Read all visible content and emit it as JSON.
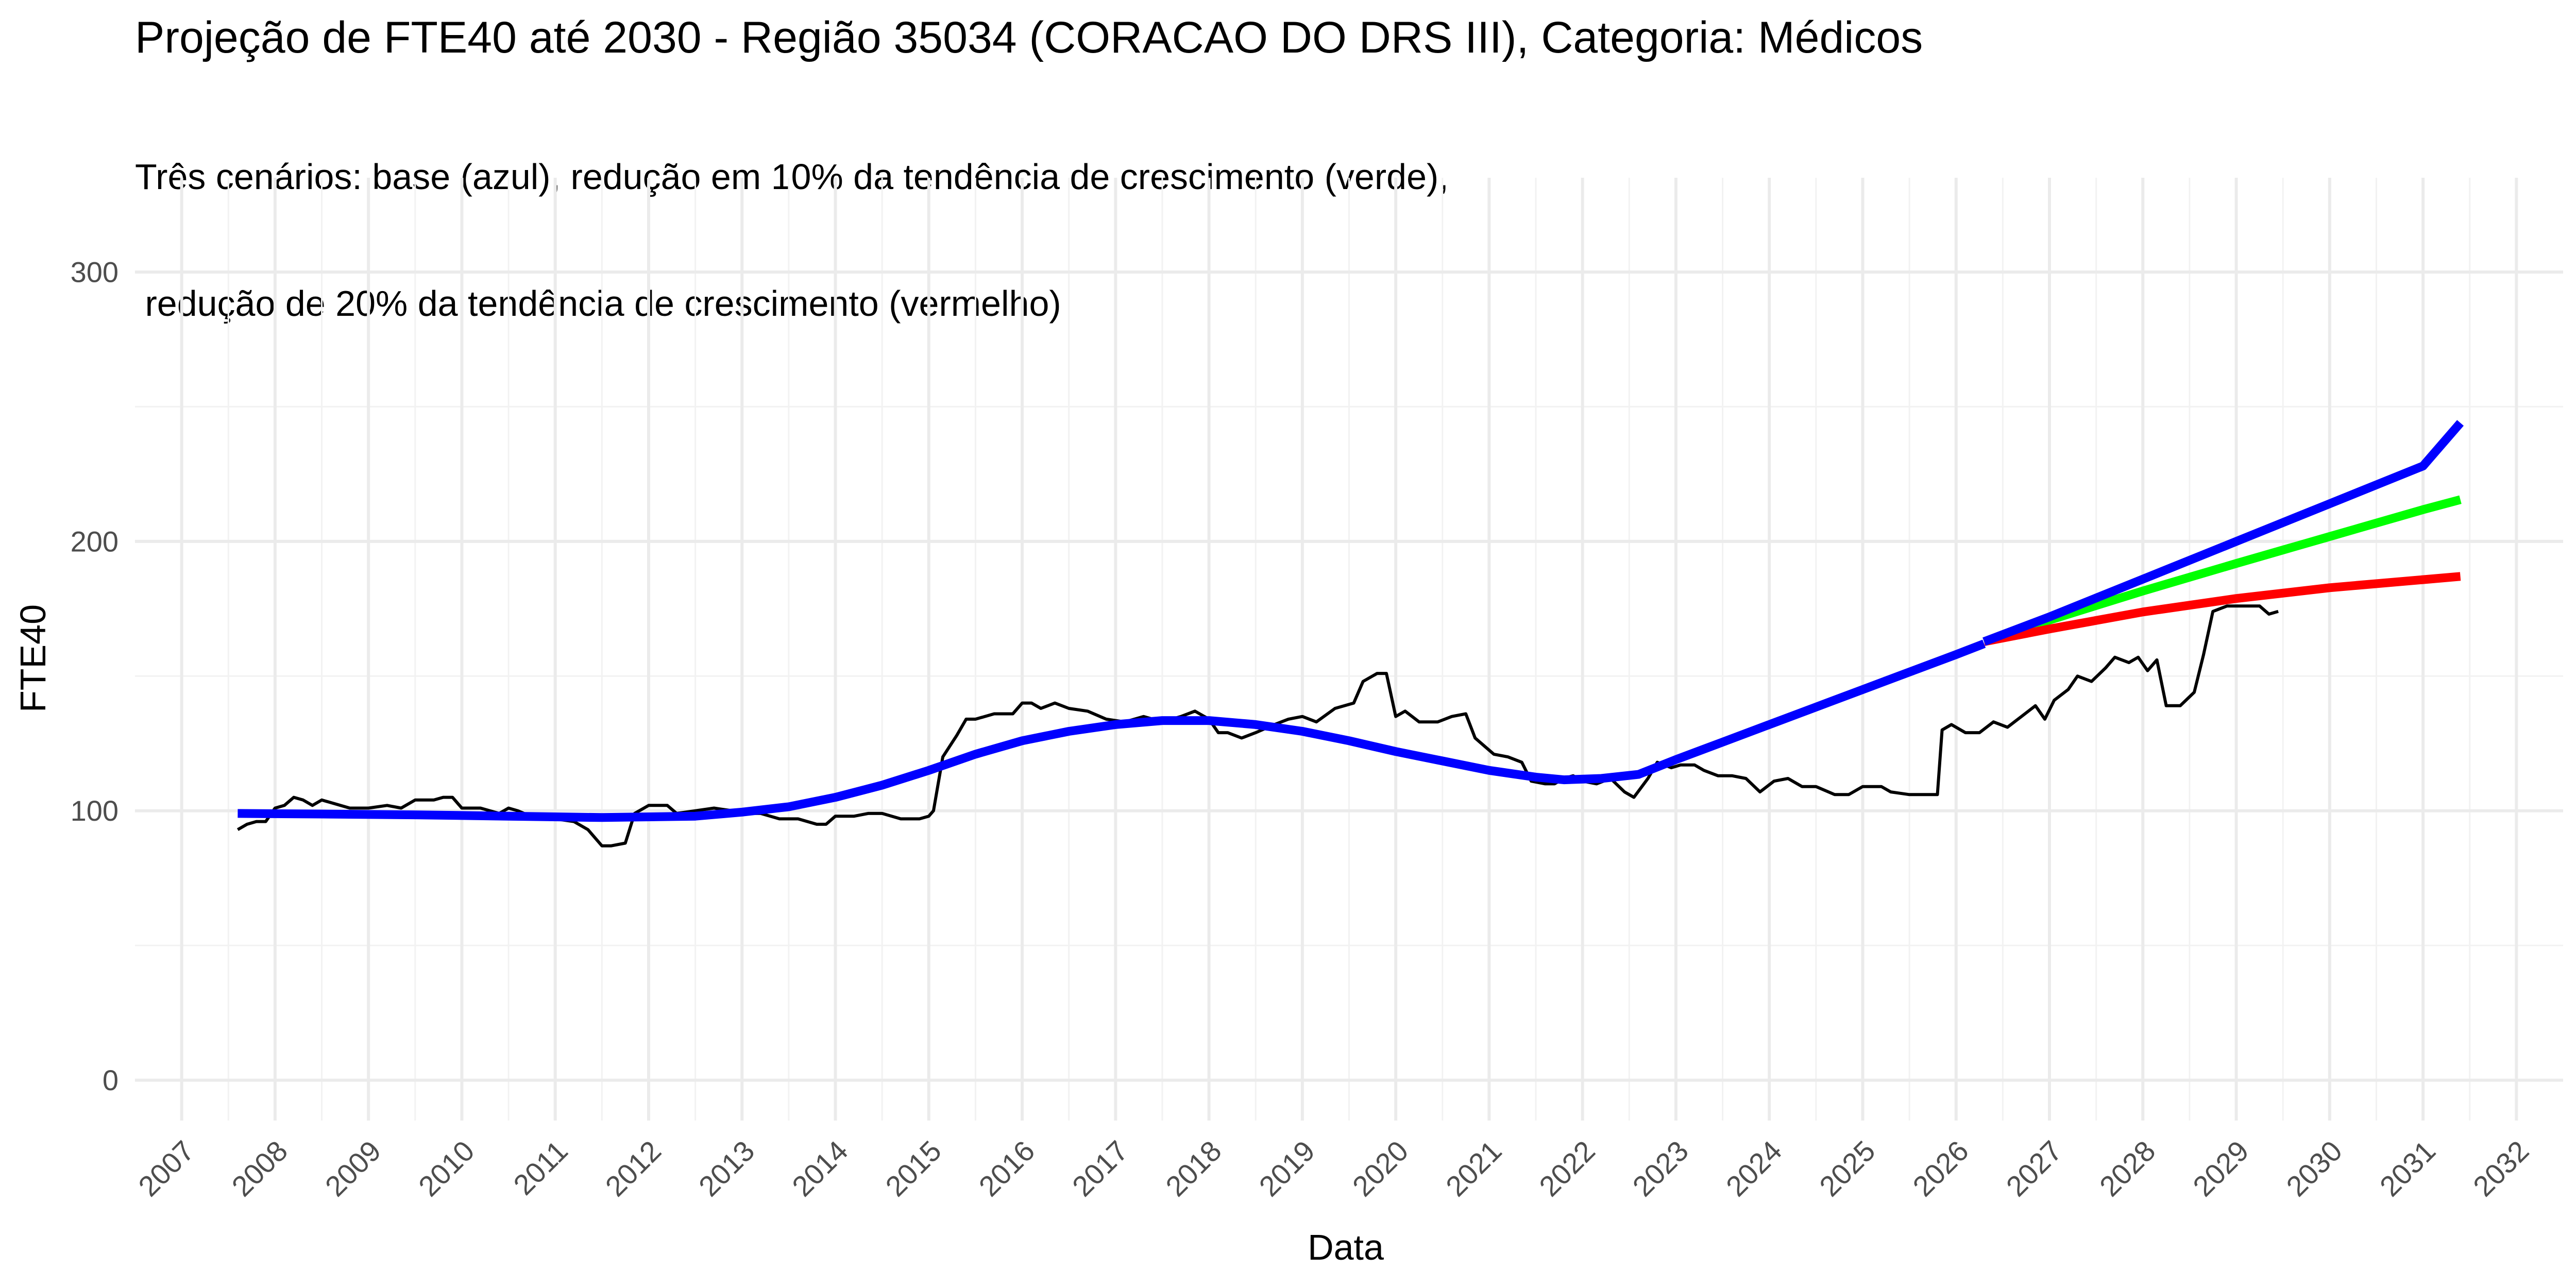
{
  "chart_data": {
    "type": "line",
    "title": "Projeção de FTE40 até 2030 - Região 35034 (CORACAO DO DRS III), Categoria: Médicos",
    "subtitle_lines": [
      "Três cenários: base (azul), redução em 10% da tendência de crescimento (verde),",
      " redução de 20% da tendência de crescimento (vermelho)"
    ],
    "xlabel": "Data",
    "ylabel": "FTE40",
    "xlim": [
      2006.5,
      2032.5
    ],
    "ylim": [
      -15,
      335
    ],
    "x_ticks": [
      2007,
      2008,
      2009,
      2010,
      2011,
      2012,
      2013,
      2014,
      2015,
      2016,
      2017,
      2018,
      2019,
      2020,
      2021,
      2022,
      2023,
      2024,
      2025,
      2026,
      2027,
      2028,
      2029,
      2030,
      2031,
      2032
    ],
    "x_tick_labels": [
      "2007",
      "2008",
      "2009",
      "2010",
      "2011",
      "2012",
      "2013",
      "2014",
      "2015",
      "2016",
      "2017",
      "2018",
      "2019",
      "2020",
      "2021",
      "2022",
      "2023",
      "2024",
      "2025",
      "2026",
      "2027",
      "2028",
      "2029",
      "2030",
      "2031",
      "2032"
    ],
    "y_ticks": [
      0,
      100,
      200,
      300
    ],
    "y_tick_labels": [
      "0",
      "100",
      "200",
      "300"
    ],
    "grid": true,
    "legend": "none",
    "series": [
      {
        "color": "#000000",
        "style": "thin",
        "points": [
          [
            2007.6,
            93
          ],
          [
            2007.7,
            95
          ],
          [
            2007.8,
            96
          ],
          [
            2007.9,
            96
          ],
          [
            2008.0,
            101
          ],
          [
            2008.1,
            102
          ],
          [
            2008.2,
            105
          ],
          [
            2008.3,
            104
          ],
          [
            2008.4,
            102
          ],
          [
            2008.5,
            104
          ],
          [
            2008.6,
            103
          ],
          [
            2008.8,
            101
          ],
          [
            2009.0,
            101
          ],
          [
            2009.2,
            102
          ],
          [
            2009.35,
            101
          ],
          [
            2009.5,
            104
          ],
          [
            2009.7,
            104
          ],
          [
            2009.8,
            105
          ],
          [
            2009.9,
            105
          ],
          [
            2010.0,
            101
          ],
          [
            2010.2,
            101
          ],
          [
            2010.4,
            99
          ],
          [
            2010.5,
            101
          ],
          [
            2010.6,
            100
          ],
          [
            2010.8,
            97
          ],
          [
            2011.0,
            97
          ],
          [
            2011.2,
            96
          ],
          [
            2011.35,
            93
          ],
          [
            2011.5,
            87
          ],
          [
            2011.6,
            87
          ],
          [
            2011.75,
            88
          ],
          [
            2011.85,
            99
          ],
          [
            2012.0,
            102
          ],
          [
            2012.2,
            102
          ],
          [
            2012.3,
            99
          ],
          [
            2012.5,
            100
          ],
          [
            2012.7,
            101
          ],
          [
            2012.9,
            100
          ],
          [
            2013.0,
            99
          ],
          [
            2013.2,
            99
          ],
          [
            2013.4,
            97
          ],
          [
            2013.6,
            97
          ],
          [
            2013.8,
            95
          ],
          [
            2013.9,
            95
          ],
          [
            2014.0,
            98
          ],
          [
            2014.2,
            98
          ],
          [
            2014.35,
            99
          ],
          [
            2014.5,
            99
          ],
          [
            2014.7,
            97
          ],
          [
            2014.9,
            97
          ],
          [
            2015.0,
            98
          ],
          [
            2015.05,
            100
          ],
          [
            2015.15,
            120
          ],
          [
            2015.3,
            128
          ],
          [
            2015.4,
            134
          ],
          [
            2015.5,
            134
          ],
          [
            2015.7,
            136
          ],
          [
            2015.9,
            136
          ],
          [
            2016.0,
            140
          ],
          [
            2016.1,
            140
          ],
          [
            2016.2,
            138
          ],
          [
            2016.35,
            140
          ],
          [
            2016.5,
            138
          ],
          [
            2016.7,
            137
          ],
          [
            2016.9,
            134
          ],
          [
            2017.1,
            133
          ],
          [
            2017.3,
            135
          ],
          [
            2017.5,
            133
          ],
          [
            2017.7,
            135
          ],
          [
            2017.85,
            137
          ],
          [
            2018.0,
            134
          ],
          [
            2018.1,
            129
          ],
          [
            2018.2,
            129
          ],
          [
            2018.35,
            127
          ],
          [
            2018.5,
            129
          ],
          [
            2018.7,
            132
          ],
          [
            2018.85,
            134
          ],
          [
            2019.0,
            135
          ],
          [
            2019.15,
            133
          ],
          [
            2019.35,
            138
          ],
          [
            2019.55,
            140
          ],
          [
            2019.65,
            148
          ],
          [
            2019.8,
            151
          ],
          [
            2019.9,
            151
          ],
          [
            2020.0,
            135
          ],
          [
            2020.1,
            137
          ],
          [
            2020.25,
            133
          ],
          [
            2020.45,
            133
          ],
          [
            2020.6,
            135
          ],
          [
            2020.75,
            136
          ],
          [
            2020.85,
            127
          ],
          [
            2020.95,
            124
          ],
          [
            2021.05,
            121
          ],
          [
            2021.2,
            120
          ],
          [
            2021.35,
            118
          ],
          [
            2021.45,
            111
          ],
          [
            2021.6,
            110
          ],
          [
            2021.7,
            110
          ],
          [
            2021.8,
            112
          ],
          [
            2021.9,
            113
          ],
          [
            2022.0,
            111
          ],
          [
            2022.15,
            110
          ],
          [
            2022.3,
            112
          ],
          [
            2022.45,
            107
          ],
          [
            2022.55,
            105
          ],
          [
            2022.7,
            112
          ],
          [
            2022.8,
            118
          ],
          [
            2022.95,
            116
          ],
          [
            2023.05,
            117
          ],
          [
            2023.2,
            117
          ],
          [
            2023.3,
            115
          ],
          [
            2023.45,
            113
          ],
          [
            2023.6,
            113
          ],
          [
            2023.75,
            112
          ],
          [
            2023.9,
            107
          ],
          [
            2024.05,
            111
          ],
          [
            2024.2,
            112
          ],
          [
            2024.35,
            109
          ],
          [
            2024.5,
            109
          ],
          [
            2024.7,
            106
          ],
          [
            2024.85,
            106
          ],
          [
            2025.0,
            109
          ],
          [
            2025.2,
            109
          ],
          [
            2025.3,
            107
          ],
          [
            2025.5,
            106
          ],
          [
            2025.7,
            106
          ],
          [
            2025.8,
            106
          ],
          [
            2025.85,
            130
          ],
          [
            2025.95,
            132
          ],
          [
            2026.1,
            129
          ],
          [
            2026.25,
            129
          ],
          [
            2026.4,
            133
          ],
          [
            2026.55,
            131
          ],
          [
            2026.7,
            135
          ],
          [
            2026.85,
            139
          ],
          [
            2026.95,
            134
          ],
          [
            2027.05,
            141
          ],
          [
            2027.2,
            145
          ],
          [
            2027.3,
            150
          ],
          [
            2027.45,
            148
          ],
          [
            2027.6,
            153
          ],
          [
            2027.7,
            157
          ],
          [
            2027.85,
            155
          ],
          [
            2027.95,
            157
          ],
          [
            2028.05,
            152
          ],
          [
            2028.15,
            156
          ],
          [
            2028.25,
            139
          ],
          [
            2028.4,
            139
          ],
          [
            2028.55,
            144
          ],
          [
            2028.65,
            158
          ],
          [
            2028.75,
            174
          ],
          [
            2028.9,
            176
          ],
          [
            2029.1,
            176
          ],
          [
            2029.25,
            176
          ],
          [
            2029.35,
            173
          ],
          [
            2029.45,
            174
          ]
        ]
      },
      {
        "color": "#0000FF",
        "style": "thick",
        "points": [
          [
            2007.6,
            99
          ],
          [
            2008.5,
            98.8
          ],
          [
            2009.5,
            98.5
          ],
          [
            2010.5,
            98
          ],
          [
            2011.5,
            97.5
          ],
          [
            2012.5,
            98
          ],
          [
            2013.0,
            99.5
          ],
          [
            2013.5,
            101.5
          ],
          [
            2014.0,
            105
          ],
          [
            2014.5,
            109.5
          ],
          [
            2015.0,
            115
          ],
          [
            2015.5,
            121
          ],
          [
            2016.0,
            126
          ],
          [
            2016.5,
            129.5
          ],
          [
            2017.0,
            132
          ],
          [
            2017.5,
            133.5
          ],
          [
            2018.0,
            133.5
          ],
          [
            2018.5,
            132
          ],
          [
            2019.0,
            129.5
          ],
          [
            2019.5,
            126
          ],
          [
            2020.0,
            122
          ],
          [
            2020.5,
            118.5
          ],
          [
            2021.0,
            115
          ],
          [
            2021.5,
            112.5
          ],
          [
            2021.8,
            111.5
          ],
          [
            2022.2,
            112
          ],
          [
            2022.6,
            113.5
          ],
          [
            2023.0,
            119
          ],
          [
            2023.5,
            125.5
          ],
          [
            2024.0,
            132
          ],
          [
            2024.5,
            138.5
          ],
          [
            2025.0,
            145
          ],
          [
            2025.5,
            151.5
          ],
          [
            2026.0,
            158
          ],
          [
            2026.3,
            162
          ]
        ]
      },
      {
        "color": "#00FF00",
        "style": "thick",
        "points": [
          [
            2026.3,
            162.8
          ],
          [
            2027.0,
            170.8
          ],
          [
            2028.0,
            181.6
          ],
          [
            2029.0,
            191.8
          ],
          [
            2030.0,
            201.8
          ],
          [
            2031.0,
            211.8
          ],
          [
            2031.4,
            215.5
          ]
        ]
      },
      {
        "color": "#FF0000",
        "style": "thick",
        "points": [
          [
            2026.3,
            162.8
          ],
          [
            2027.0,
            167.5
          ],
          [
            2028.0,
            173.8
          ],
          [
            2029.0,
            178.8
          ],
          [
            2030.0,
            182.8
          ],
          [
            2031.0,
            185.8
          ],
          [
            2031.4,
            187
          ]
        ]
      },
      {
        "color": "#0000FF",
        "style": "thick",
        "points": [
          [
            2026.3,
            162.8
          ],
          [
            2027.0,
            172
          ],
          [
            2028.0,
            186
          ],
          [
            2029.0,
            200
          ],
          [
            2030.0,
            214
          ],
          [
            2031.0,
            228
          ],
          [
            2031.4,
            244
          ]
        ]
      }
    ]
  }
}
